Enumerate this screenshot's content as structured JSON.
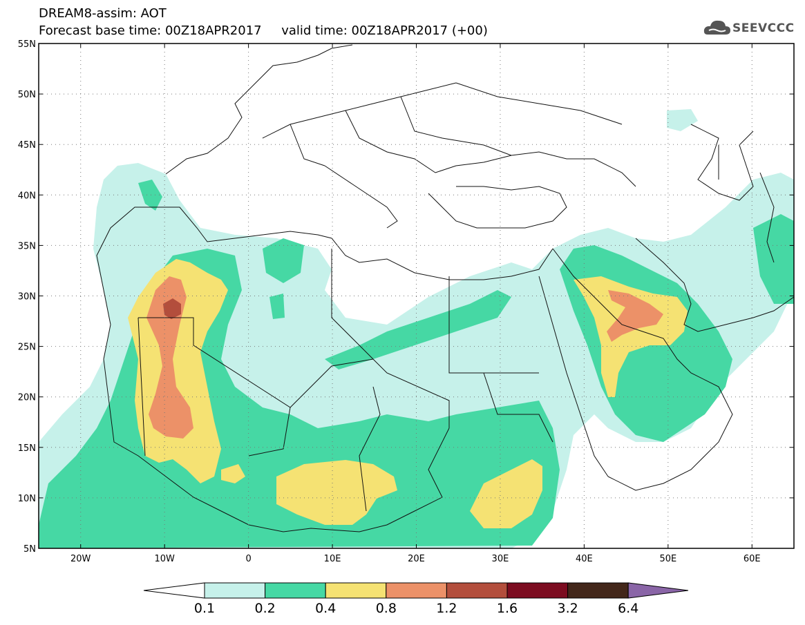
{
  "header": {
    "title_line1": "DREAM8-assim: AOT",
    "title_line2": "Forecast base time: 00Z18APR2017     valid time: 00Z18APR2017 (+00)",
    "logo_text": "SEEVCCC"
  },
  "map": {
    "lon_range": [
      -25,
      65
    ],
    "lat_range": [
      5,
      55
    ],
    "lat_labels": [
      "55N",
      "50N",
      "45N",
      "40N",
      "35N",
      "30N",
      "25N",
      "20N",
      "15N",
      "10N",
      "5N"
    ],
    "lon_labels": [
      "20W",
      "10W",
      "0",
      "10E",
      "20E",
      "30E",
      "40E",
      "50E",
      "60E"
    ],
    "field": "Aerosol Optical Thickness (AOT)"
  },
  "colorbar": {
    "labels": [
      "0.1",
      "0.2",
      "0.4",
      "0.8",
      "1.2",
      "1.6",
      "3.2",
      "6.4"
    ],
    "colors": [
      "#c6f1ea",
      "#46d8a4",
      "#f5e273",
      "#ec9168",
      "#b34e3c",
      "#7c0c20",
      "#43271a",
      "#8a65a7"
    ]
  },
  "palette": {
    "aot_0_1": "#c6f1ea",
    "aot_0_2": "#46d8a4",
    "aot_0_4": "#f5e273",
    "aot_0_8": "#ec9168",
    "aot_1_2": "#b34e3c"
  }
}
